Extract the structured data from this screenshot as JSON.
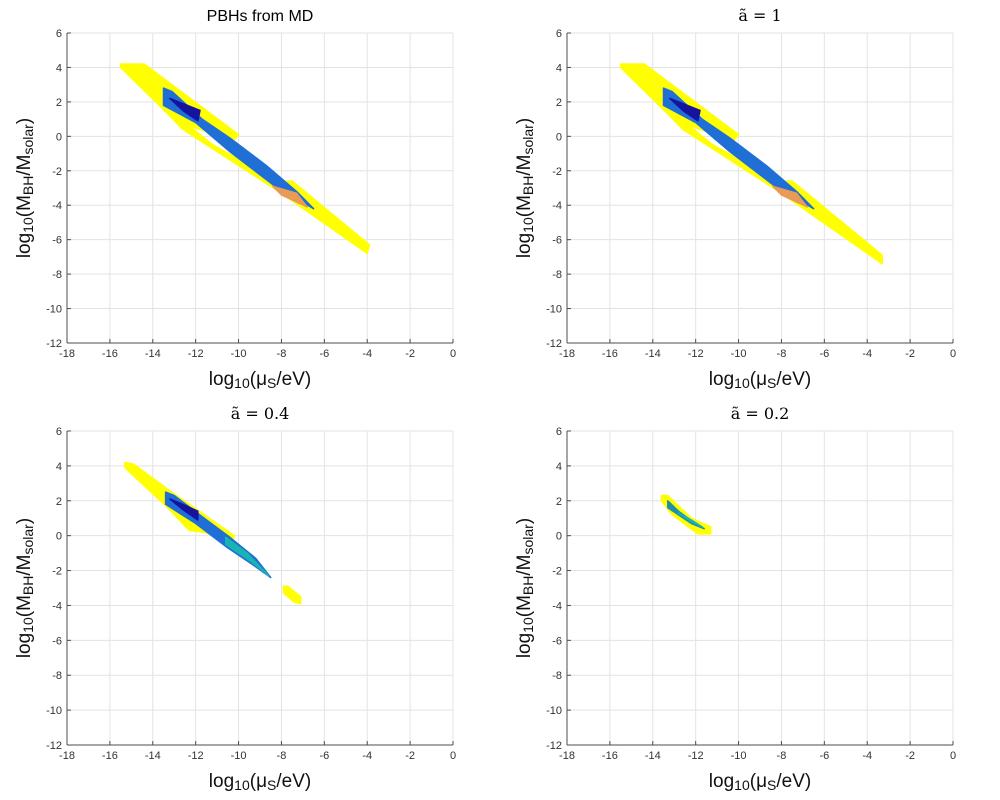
{
  "chart_data": [
    {
      "type": "contour",
      "title": "PBHs from MD",
      "xlabel": "log10(μS/eV)",
      "ylabel": "log10(MBH/Msolar)",
      "xlim": [
        -18,
        0
      ],
      "ylim": [
        -12,
        6
      ],
      "xticks": [
        "-18",
        "-16",
        "-14",
        "-12",
        "-10",
        "-8",
        "-6",
        "-4",
        "-2",
        "0"
      ],
      "yticks": [
        "6",
        "4",
        "2",
        "0",
        "-2",
        "-4",
        "-6",
        "-8",
        "-10",
        "-12"
      ],
      "regions": [
        {
          "name": "outer",
          "color": "#ffff00",
          "points": [
            [
              -15.5,
              4.2
            ],
            [
              -14.4,
              4.2
            ],
            [
              -10.0,
              0.1
            ],
            [
              -10.2,
              -0.2
            ],
            [
              -12.3,
              0.6
            ],
            [
              -11.2,
              -0.5
            ],
            [
              -8.1,
              -2.6
            ],
            [
              -7.5,
              -2.6
            ],
            [
              -3.9,
              -6.3
            ],
            [
              -4.0,
              -6.8
            ],
            [
              -8.0,
              -3.3
            ],
            [
              -12.6,
              0.4
            ],
            [
              -13.3,
              1.3
            ],
            [
              -15.5,
              4.0
            ]
          ]
        },
        {
          "name": "core",
          "color": "#1f6fd6",
          "points": [
            [
              -13.5,
              2.8
            ],
            [
              -13.1,
              2.6
            ],
            [
              -11.7,
              1.0
            ],
            [
              -10.4,
              -0.1
            ],
            [
              -8.7,
              -1.7
            ],
            [
              -7.3,
              -3.2
            ],
            [
              -6.5,
              -4.2
            ],
            [
              -8.4,
              -2.8
            ],
            [
              -10.4,
              -0.9
            ],
            [
              -12.0,
              0.8
            ],
            [
              -13.5,
              1.8
            ]
          ]
        },
        {
          "name": "inner",
          "color": "#16139f",
          "points": [
            [
              -13.2,
              2.2
            ],
            [
              -12.6,
              1.5
            ],
            [
              -11.9,
              0.9
            ],
            [
              -11.8,
              1.5
            ],
            [
              -12.6,
              1.9
            ]
          ]
        },
        {
          "name": "tail",
          "color": "#e79b56",
          "points": [
            [
              -8.4,
              -2.9
            ],
            [
              -7.3,
              -3.3
            ],
            [
              -6.8,
              -4.1
            ],
            [
              -8.0,
              -3.4
            ]
          ]
        }
      ]
    },
    {
      "type": "contour",
      "title": "ã = 1",
      "xlabel": "log10(μS/eV)",
      "ylabel": "log10(MBH/Msolar)",
      "xlim": [
        -18,
        0
      ],
      "ylim": [
        -12,
        6
      ],
      "xticks": [
        "-18",
        "-16",
        "-14",
        "-12",
        "-10",
        "-8",
        "-6",
        "-4",
        "-2",
        "0"
      ],
      "yticks": [
        "6",
        "4",
        "2",
        "0",
        "-2",
        "-4",
        "-6",
        "-8",
        "-10",
        "-12"
      ],
      "regions": [
        {
          "name": "outer",
          "color": "#ffff00",
          "points": [
            [
              -15.5,
              4.2
            ],
            [
              -14.4,
              4.2
            ],
            [
              -10.0,
              0.1
            ],
            [
              -10.2,
              -0.2
            ],
            [
              -12.3,
              0.6
            ],
            [
              -11.2,
              -0.5
            ],
            [
              -8.1,
              -2.6
            ],
            [
              -7.5,
              -2.6
            ],
            [
              -3.3,
              -6.9
            ],
            [
              -3.3,
              -7.4
            ],
            [
              -8.0,
              -3.3
            ],
            [
              -12.6,
              0.4
            ],
            [
              -13.3,
              1.3
            ],
            [
              -15.5,
              4.0
            ]
          ]
        },
        {
          "name": "core",
          "color": "#1f6fd6",
          "points": [
            [
              -13.5,
              2.8
            ],
            [
              -13.1,
              2.6
            ],
            [
              -11.7,
              1.0
            ],
            [
              -10.4,
              -0.1
            ],
            [
              -8.7,
              -1.7
            ],
            [
              -7.3,
              -3.2
            ],
            [
              -6.5,
              -4.2
            ],
            [
              -8.4,
              -2.8
            ],
            [
              -10.4,
              -0.9
            ],
            [
              -12.0,
              0.8
            ],
            [
              -13.5,
              1.8
            ]
          ]
        },
        {
          "name": "inner",
          "color": "#16139f",
          "points": [
            [
              -13.2,
              2.2
            ],
            [
              -12.6,
              1.5
            ],
            [
              -11.9,
              0.9
            ],
            [
              -11.8,
              1.5
            ],
            [
              -12.6,
              1.9
            ]
          ]
        },
        {
          "name": "tail",
          "color": "#e79b56",
          "points": [
            [
              -8.4,
              -2.9
            ],
            [
              -7.3,
              -3.3
            ],
            [
              -6.8,
              -4.1
            ],
            [
              -8.0,
              -3.4
            ]
          ]
        }
      ]
    },
    {
      "type": "contour",
      "title": "ã = 0.4",
      "xlabel": "log10(μS/eV)",
      "ylabel": "log10(MBH/Msolar)",
      "xlim": [
        -18,
        0
      ],
      "ylim": [
        -12,
        6
      ],
      "xticks": [
        "-18",
        "-16",
        "-14",
        "-12",
        "-10",
        "-8",
        "-6",
        "-4",
        "-2",
        "0"
      ],
      "yticks": [
        "6",
        "4",
        "2",
        "0",
        "-2",
        "-4",
        "-6",
        "-8",
        "-10",
        "-12"
      ],
      "regions": [
        {
          "name": "outer",
          "color": "#ffff00",
          "points": [
            [
              -15.3,
              4.2
            ],
            [
              -14.9,
              4.1
            ],
            [
              -13.0,
              2.4
            ],
            [
              -10.2,
              0.0
            ],
            [
              -10.3,
              -0.4
            ],
            [
              -11.6,
              0.2
            ],
            [
              -12.3,
              0.3
            ],
            [
              -13.3,
              1.6
            ],
            [
              -15.3,
              3.9
            ]
          ]
        },
        {
          "name": "blob",
          "color": "#ffff00",
          "points": [
            [
              -7.9,
              -2.9
            ],
            [
              -7.7,
              -2.9
            ],
            [
              -7.1,
              -3.5
            ],
            [
              -7.1,
              -3.9
            ],
            [
              -7.4,
              -3.8
            ],
            [
              -7.9,
              -3.3
            ]
          ]
        },
        {
          "name": "core",
          "color": "#1f6fd6",
          "points": [
            [
              -13.4,
              2.5
            ],
            [
              -13.0,
              2.3
            ],
            [
              -11.6,
              1.0
            ],
            [
              -10.4,
              -0.1
            ],
            [
              -9.2,
              -1.3
            ],
            [
              -8.5,
              -2.4
            ],
            [
              -9.3,
              -1.7
            ],
            [
              -10.5,
              -0.7
            ],
            [
              -12.0,
              0.7
            ],
            [
              -13.4,
              1.8
            ]
          ]
        },
        {
          "name": "inner",
          "color": "#16139f",
          "points": [
            [
              -13.2,
              2.1
            ],
            [
              -12.6,
              1.5
            ],
            [
              -11.9,
              0.9
            ],
            [
              -11.9,
              1.4
            ],
            [
              -12.6,
              1.8
            ]
          ]
        },
        {
          "name": "teal",
          "color": "#18b4b4",
          "points": [
            [
              -10.6,
              -0.1
            ],
            [
              -9.6,
              -1.0
            ],
            [
              -8.6,
              -2.3
            ],
            [
              -9.4,
              -1.5
            ],
            [
              -10.6,
              -0.5
            ]
          ]
        }
      ]
    },
    {
      "type": "contour",
      "title": "ã = 0.2",
      "xlabel": "log10(μS/eV)",
      "ylabel": "log10(MBH/Msolar)",
      "xlim": [
        -18,
        0
      ],
      "ylim": [
        -12,
        6
      ],
      "xticks": [
        "-18",
        "-16",
        "-14",
        "-12",
        "-10",
        "-8",
        "-6",
        "-4",
        "-2",
        "0"
      ],
      "yticks": [
        "6",
        "4",
        "2",
        "0",
        "-2",
        "-4",
        "-6",
        "-8",
        "-10",
        "-12"
      ],
      "regions": [
        {
          "name": "outer",
          "color": "#ffff00",
          "points": [
            [
              -13.6,
              2.3
            ],
            [
              -13.3,
              2.3
            ],
            [
              -12.2,
              1.0
            ],
            [
              -11.3,
              0.5
            ],
            [
              -11.3,
              0.1
            ],
            [
              -11.9,
              0.1
            ],
            [
              -13.1,
              1.2
            ],
            [
              -13.6,
              2.0
            ]
          ]
        },
        {
          "name": "core",
          "color": "#1f8fb0",
          "points": [
            [
              -13.3,
              2.0
            ],
            [
              -12.8,
              1.4
            ],
            [
              -11.9,
              0.6
            ],
            [
              -11.6,
              0.4
            ],
            [
              -12.2,
              0.7
            ],
            [
              -13.3,
              1.6
            ]
          ]
        },
        {
          "name": "inner",
          "color": "#18b4b4",
          "points": [
            [
              -12.8,
              1.3
            ],
            [
              -12.2,
              0.8
            ],
            [
              -11.7,
              0.5
            ],
            [
              -12.2,
              0.9
            ]
          ]
        }
      ]
    }
  ]
}
